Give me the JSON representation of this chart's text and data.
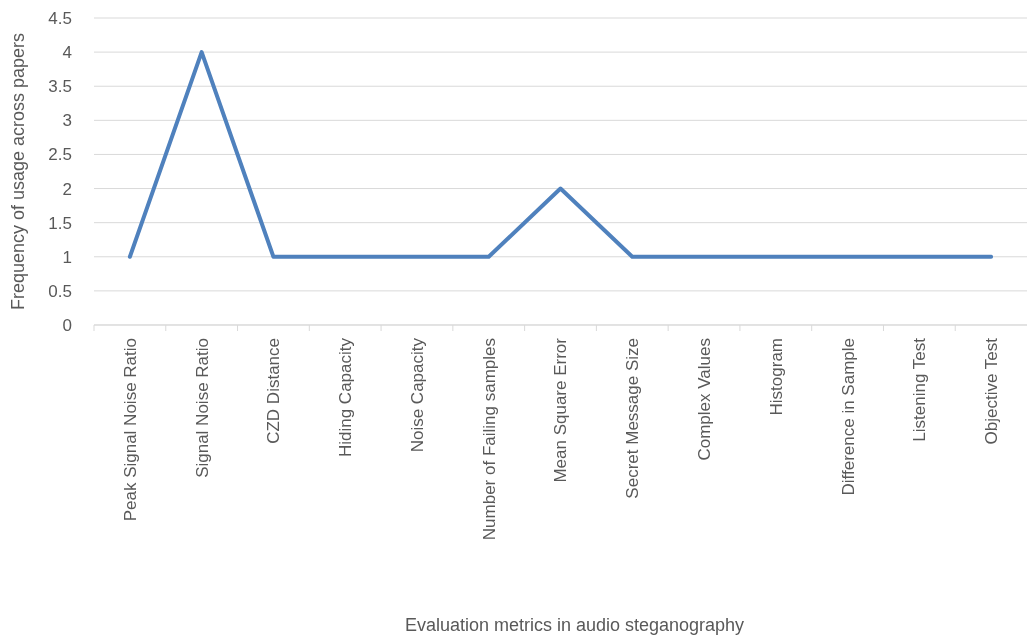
{
  "chart_data": {
    "type": "line",
    "xlabel": "Evaluation metrics in audio steganography",
    "ylabel": "Frequency of usage across papers",
    "categories": [
      "Peak Signal Noise Ratio",
      "Signal Noise Ratio",
      "CZD Distance",
      "Hiding Capacity",
      "Noise Capacity",
      "Number of Failing samples",
      "Mean Square Error",
      "Secret Message Size",
      "Complex Values",
      "Histogram",
      "Difference in Sample",
      "Listening Test",
      "Objective Test"
    ],
    "series": [
      {
        "color": "#4f81bd",
        "values": [
          1,
          4,
          1,
          1,
          1,
          1,
          2,
          1,
          1,
          1,
          1,
          1,
          1
        ]
      }
    ],
    "ylim": [
      0,
      4.5
    ],
    "yticks": [
      0,
      {
        "value": 0.5,
        "label": "0.5"
      },
      1,
      {
        "value": 1.5,
        "label": "1.5"
      },
      2,
      {
        "value": 2.5,
        "label": "2.5"
      },
      3,
      {
        "value": 3.5,
        "label": "3.5"
      },
      4,
      {
        "value": 4.5,
        "label": "4.5"
      }
    ],
    "grid": "y",
    "marker": "none",
    "line_style": "solid"
  }
}
